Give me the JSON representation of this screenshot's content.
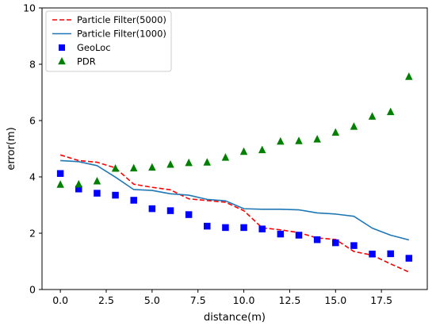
{
  "chart_data": {
    "type": "line",
    "xlabel": "distance(m)",
    "ylabel": "error(m)",
    "xlim": [
      -1.0,
      20.0
    ],
    "ylim": [
      0,
      10
    ],
    "xticks": [
      0.0,
      2.5,
      5.0,
      7.5,
      10.0,
      12.5,
      15.0,
      17.5
    ],
    "xtick_labels": [
      "0.0",
      "2.5",
      "5.0",
      "7.5",
      "10.0",
      "12.5",
      "15.0",
      "17.5"
    ],
    "yticks": [
      0,
      2,
      4,
      6,
      8,
      10
    ],
    "ytick_labels": [
      "0",
      "2",
      "4",
      "6",
      "8",
      "10"
    ],
    "grid": false,
    "legend_position": "top-left",
    "series": [
      {
        "name": "Particle Filter(5000)",
        "style": "dashed-line",
        "color": "#ff0000",
        "x": [
          0,
          1,
          2,
          3,
          4,
          5,
          6,
          7,
          8,
          9,
          10,
          11,
          12,
          13,
          14,
          15,
          16,
          17,
          18,
          19
        ],
        "y": [
          4.78,
          4.58,
          4.52,
          4.32,
          3.74,
          3.63,
          3.54,
          3.22,
          3.16,
          3.1,
          2.8,
          2.19,
          2.12,
          2.02,
          1.83,
          1.78,
          1.35,
          1.22,
          0.91,
          0.62
        ]
      },
      {
        "name": "Particle Filter(1000)",
        "style": "solid-line",
        "color": "#1f77b4",
        "x": [
          0,
          1,
          2,
          3,
          4,
          5,
          6,
          7,
          8,
          9,
          10,
          11,
          12,
          13,
          14,
          15,
          16,
          17,
          18,
          19
        ],
        "y": [
          4.58,
          4.54,
          4.4,
          3.99,
          3.55,
          3.52,
          3.4,
          3.35,
          3.2,
          3.15,
          2.87,
          2.85,
          2.85,
          2.83,
          2.72,
          2.68,
          2.6,
          2.18,
          1.93,
          1.76
        ]
      },
      {
        "name": "GeoLoc",
        "style": "square-marker",
        "color": "#0000ff",
        "x": [
          0,
          1,
          2,
          3,
          4,
          5,
          6,
          7,
          8,
          9,
          10,
          11,
          12,
          13,
          14,
          15,
          16,
          17,
          18,
          19
        ],
        "y": [
          4.12,
          3.57,
          3.42,
          3.35,
          3.17,
          2.87,
          2.8,
          2.66,
          2.25,
          2.2,
          2.2,
          2.15,
          1.97,
          1.93,
          1.77,
          1.66,
          1.56,
          1.26,
          1.27,
          1.11
        ]
      },
      {
        "name": "PDR",
        "style": "triangle-marker",
        "color": "#008000",
        "x": [
          0,
          1,
          2,
          3,
          4,
          5,
          6,
          7,
          8,
          9,
          10,
          11,
          12,
          13,
          14,
          15,
          16,
          17,
          18,
          19
        ],
        "y": [
          3.72,
          3.73,
          3.84,
          4.29,
          4.3,
          4.33,
          4.43,
          4.49,
          4.51,
          4.68,
          4.89,
          4.95,
          5.25,
          5.27,
          5.33,
          5.57,
          5.78,
          6.14,
          6.3,
          7.55
        ]
      }
    ]
  }
}
